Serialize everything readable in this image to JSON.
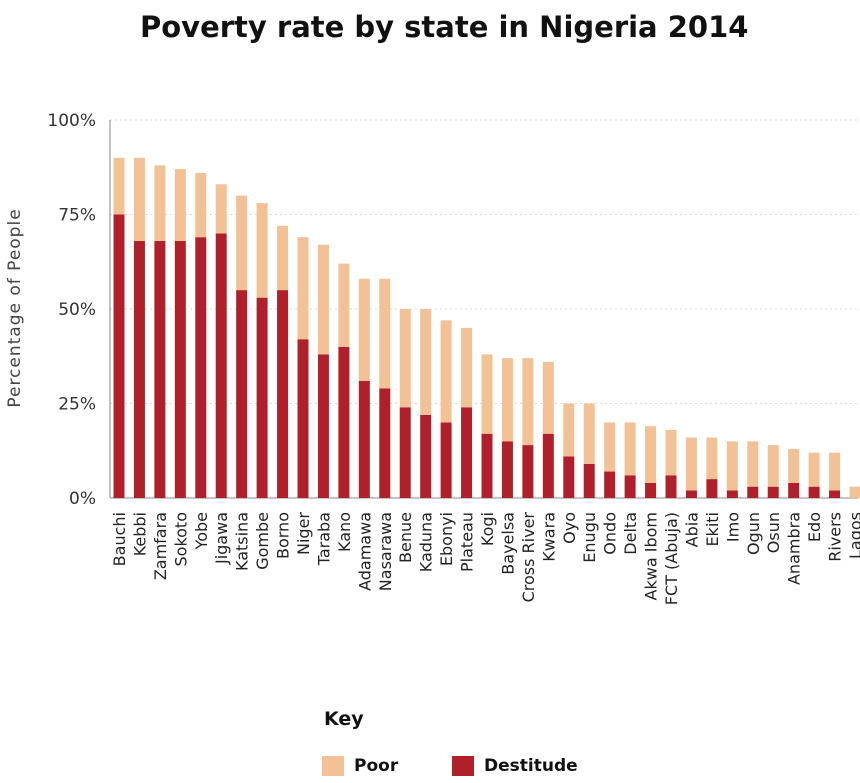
{
  "chart_data": {
    "type": "bar",
    "stacked": true,
    "title": "Poverty rate by state in Nigeria 2014",
    "xlabel": "",
    "ylabel": "Percentage of People",
    "ylim": [
      0,
      100
    ],
    "yticks": [
      "0%",
      "25%",
      "50%",
      "75%",
      "100%"
    ],
    "grid": true,
    "legend": {
      "title": "Key",
      "position": "bottom-center"
    },
    "categories": [
      "Bauchi",
      "Kebbi",
      "Zamfara",
      "Sokoto",
      "Yobe",
      "Jigawa",
      "Katsina",
      "Gombe",
      "Borno",
      "Niger",
      "Taraba",
      "Kano",
      "Adamawa",
      "Nasarawa",
      "Benue",
      "Kaduna",
      "Ebonyi",
      "Plateau",
      "Kogi",
      "Bayelsa",
      "Cross River",
      "Kwara",
      "Oyo",
      "Enugu",
      "Ondo",
      "Delta",
      "Akwa Ibom",
      "FCT (Abuja)",
      "Abia",
      "Ekiti",
      "Imo",
      "Ogun",
      "Osun",
      "Anambra",
      "Edo",
      "Rivers",
      "Lagos"
    ],
    "series": [
      {
        "name": "Destitude",
        "color": "#b0202a",
        "values": [
          75,
          68,
          68,
          68,
          69,
          70,
          55,
          53,
          55,
          42,
          38,
          40,
          31,
          29,
          24,
          22,
          20,
          24,
          17,
          15,
          14,
          17,
          11,
          9,
          7,
          6,
          4,
          6,
          2,
          5,
          2,
          3,
          3,
          4,
          3,
          2,
          0
        ]
      },
      {
        "name": "Poor",
        "color": "#f2c196",
        "values": [
          15,
          22,
          20,
          19,
          17,
          13,
          25,
          25,
          17,
          27,
          29,
          22,
          27,
          29,
          26,
          28,
          27,
          21,
          21,
          22,
          23,
          19,
          14,
          16,
          13,
          14,
          15,
          12,
          14,
          11,
          13,
          12,
          11,
          9,
          9,
          10,
          3
        ]
      }
    ]
  }
}
